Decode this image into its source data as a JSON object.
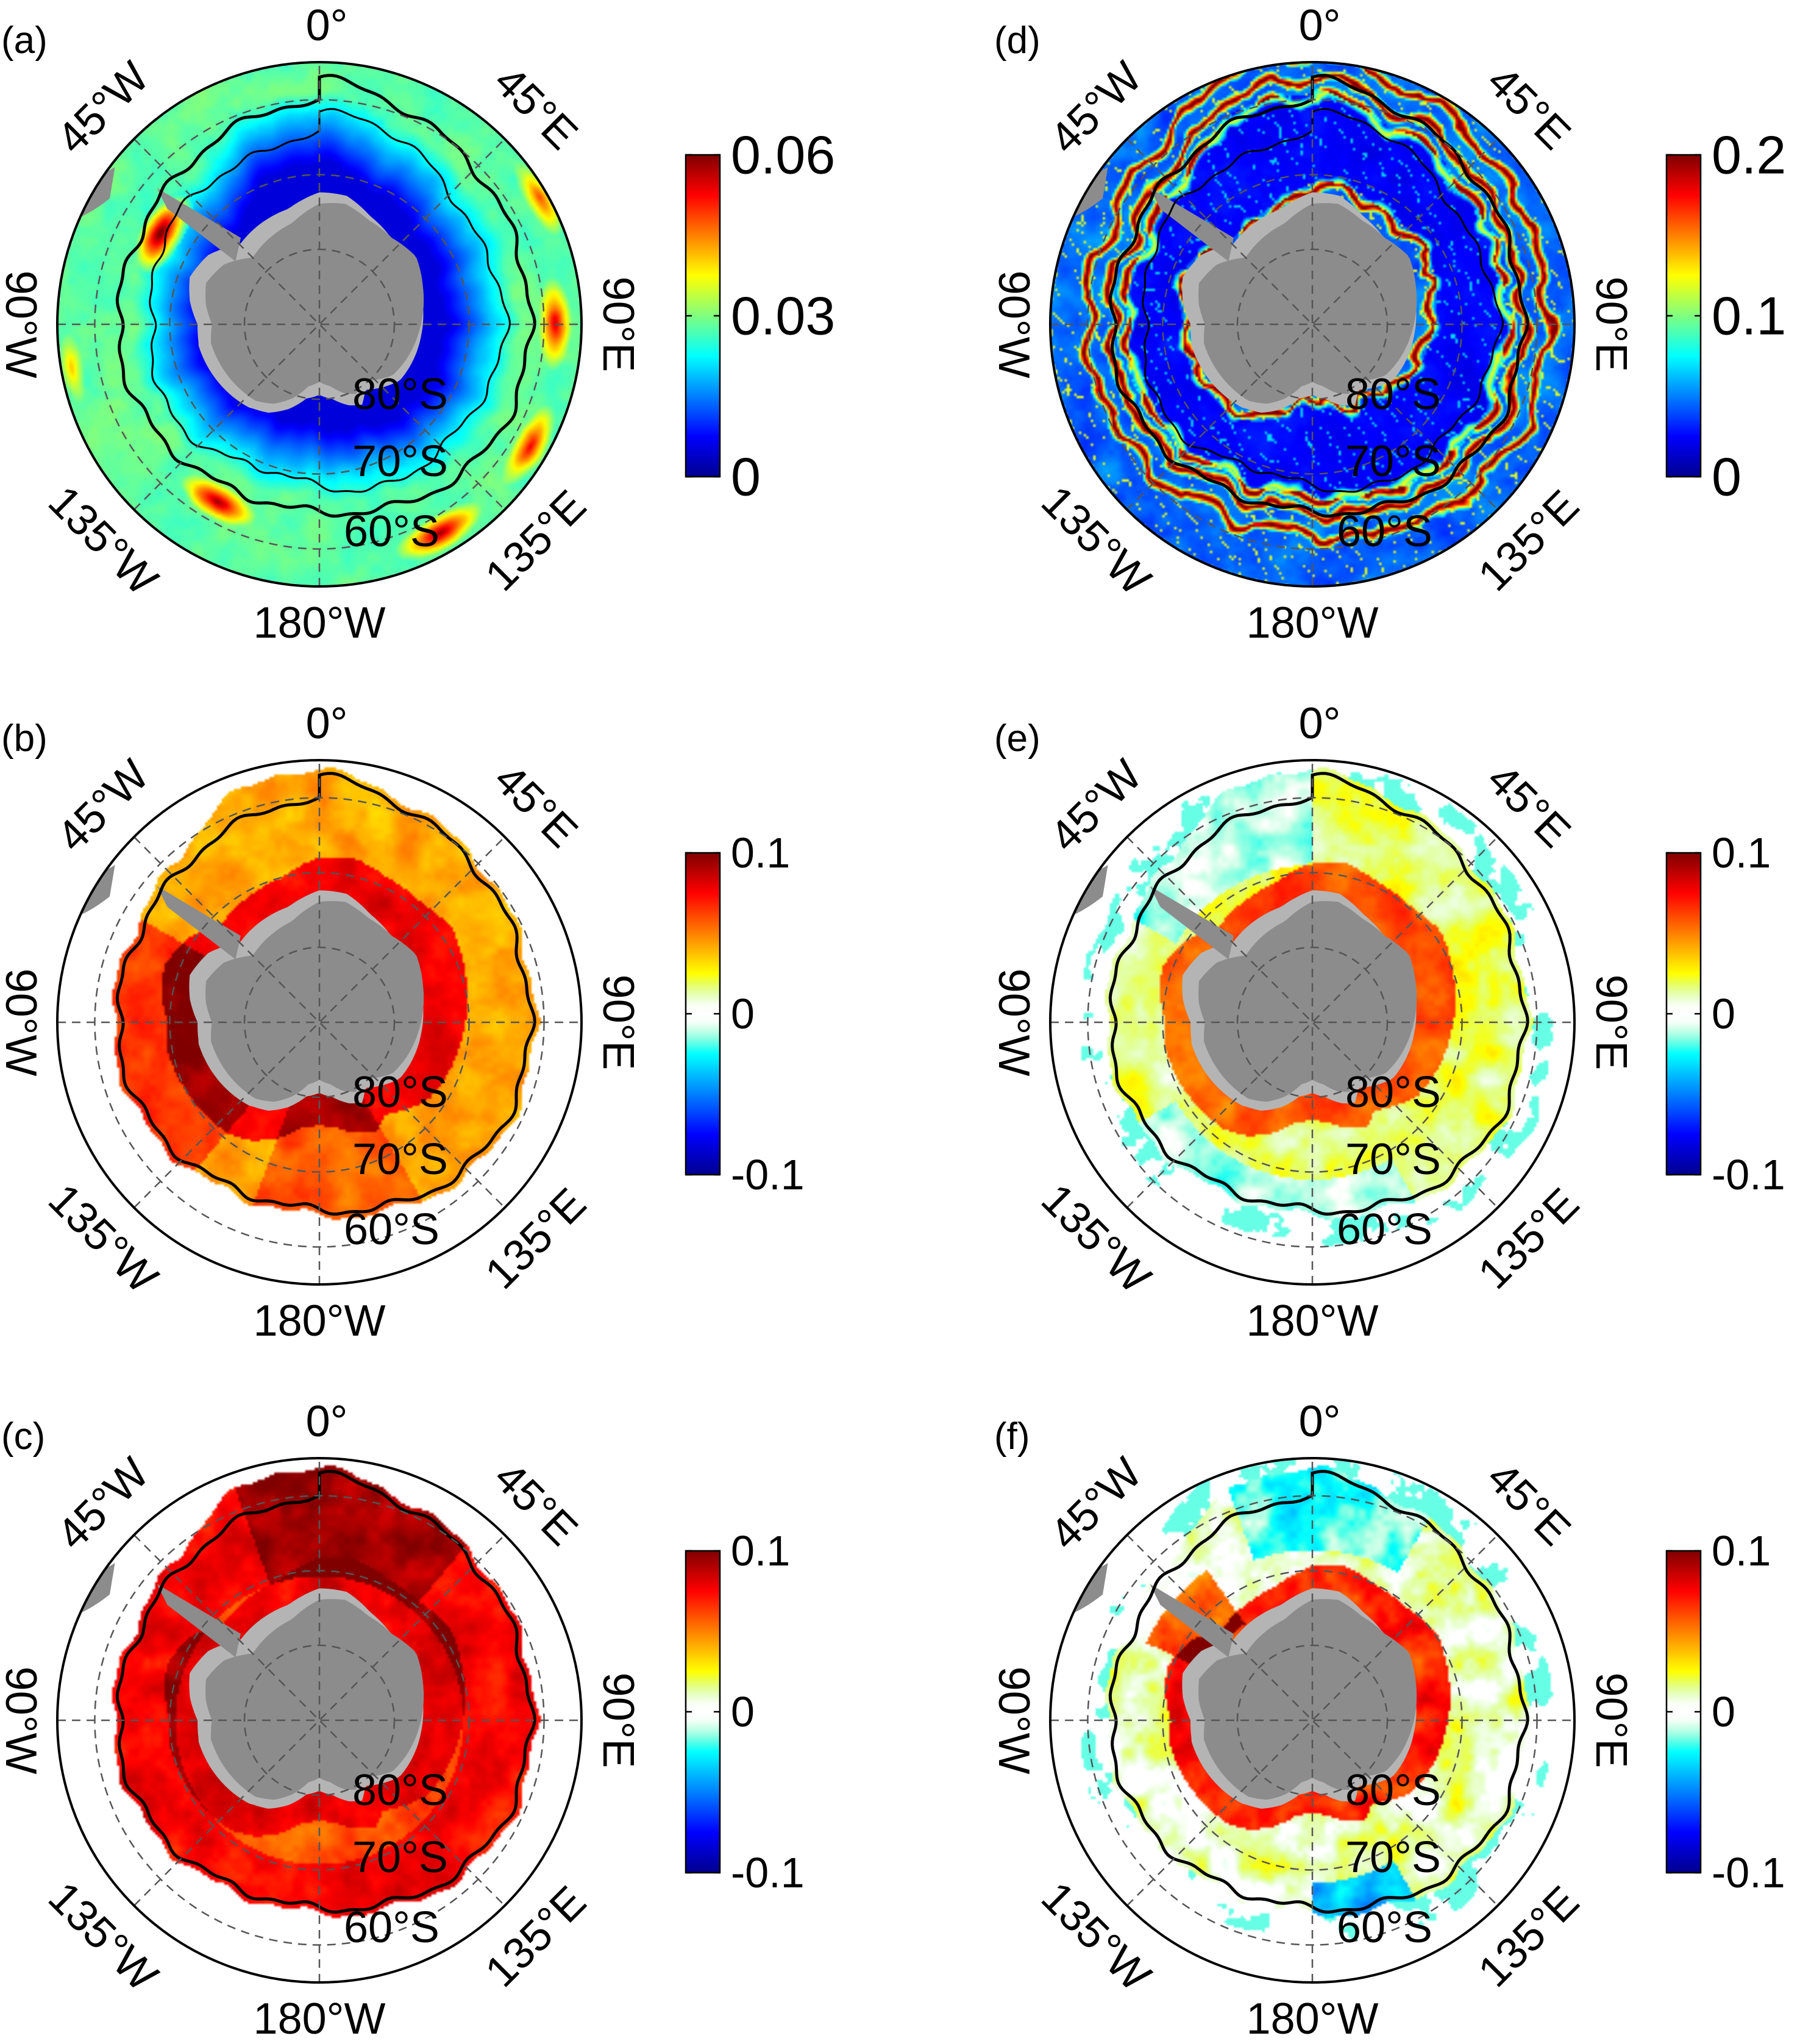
{
  "colormap": [
    "#00008f",
    "#0000ff",
    "#0080ff",
    "#00ffff",
    "#80ff80",
    "#ffff00",
    "#ff8000",
    "#ff0000",
    "#800000"
  ],
  "colors": {
    "land": "#8c8c8c",
    "ice_shelf": "#b4b4b4",
    "front": "#000000",
    "graticule": "#555555"
  },
  "map_labels": {
    "lon_top": "0°",
    "lon_bottom": "180°W",
    "lon_left": "90°W",
    "lon_right": "90°E",
    "lon_tl": "45°W",
    "lon_tr": "45°E",
    "lon_bl": "135°W",
    "lon_br": "135°E",
    "lat_inner": "80°S",
    "lat_mid": "70°S",
    "lat_outer": "60°S"
  },
  "panels": [
    {
      "id": "a",
      "label": "(a)",
      "field": "a",
      "colorbar": {
        "min": 0,
        "max": 0.06,
        "ticks": [
          "0",
          "0.03",
          "0.06"
        ]
      }
    },
    {
      "id": "b",
      "label": "(b)",
      "field": "b",
      "colorbar": {
        "min": -0.1,
        "max": 0.1,
        "ticks": [
          "-0.1",
          "0",
          "0.1"
        ]
      }
    },
    {
      "id": "c",
      "label": "(c)",
      "field": "c",
      "colorbar": {
        "min": -0.1,
        "max": 0.1,
        "ticks": [
          "-0.1",
          "0",
          "0.1"
        ]
      }
    },
    {
      "id": "d",
      "label": "(d)",
      "field": "d",
      "colorbar": {
        "min": 0,
        "max": 0.2,
        "ticks": [
          "0",
          "0.1",
          "0.2"
        ]
      }
    },
    {
      "id": "e",
      "label": "(e)",
      "field": "e",
      "colorbar": {
        "min": -0.1,
        "max": 0.1,
        "ticks": [
          "-0.1",
          "0",
          "0.1"
        ]
      }
    },
    {
      "id": "f",
      "label": "(f)",
      "field": "f",
      "colorbar": {
        "min": -0.1,
        "max": 0.1,
        "ticks": [
          "-0.1",
          "0",
          "0.1"
        ]
      }
    }
  ]
}
